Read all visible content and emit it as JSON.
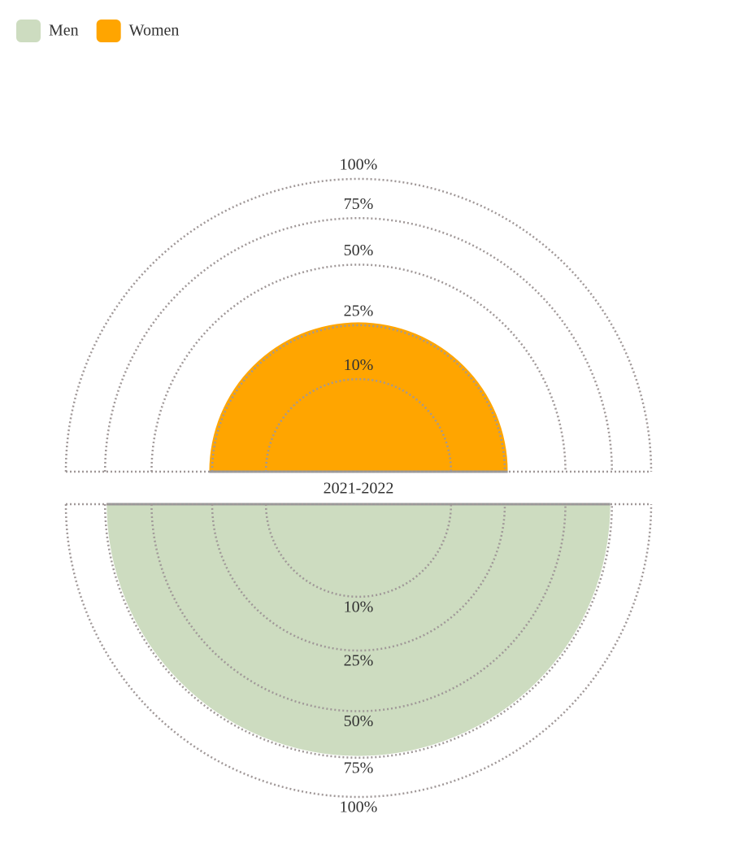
{
  "chart_data": {
    "type": "semicircle",
    "categories": [
      "2021-2022"
    ],
    "series": [
      {
        "name": "Men",
        "color": "#cddcc0",
        "values": [
          74
        ]
      },
      {
        "name": "Women",
        "color": "#ffa500",
        "values": [
          26
        ]
      }
    ],
    "rlim": [
      0,
      100
    ],
    "rticks": [
      {
        "value": 10,
        "label": "10%"
      },
      {
        "value": 25,
        "label": "25%"
      },
      {
        "value": 50,
        "label": "50%"
      },
      {
        "value": 75,
        "label": "75%"
      },
      {
        "value": 100,
        "label": "100%"
      }
    ],
    "legend": "top-left"
  }
}
